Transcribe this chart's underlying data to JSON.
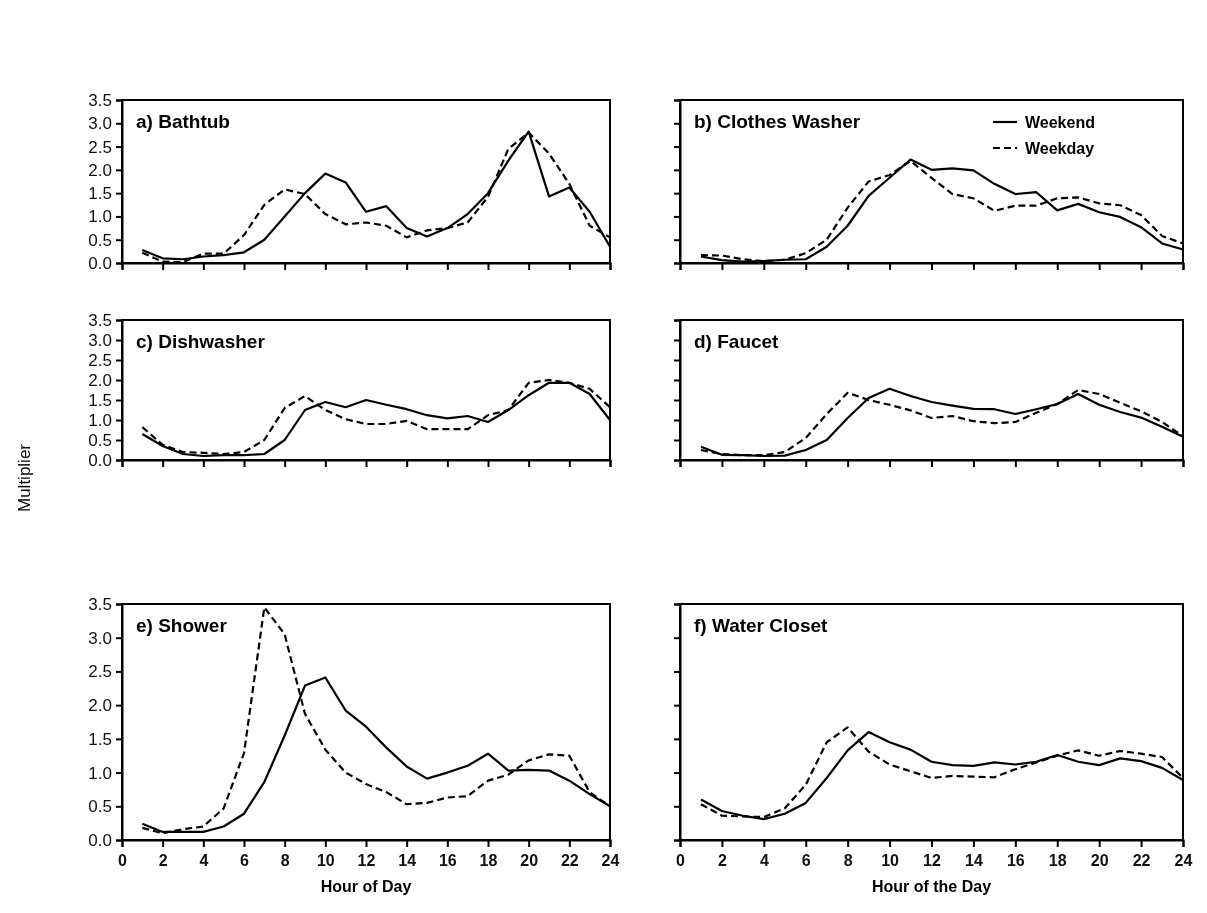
{
  "chart_data": [
    {
      "type": "line",
      "title": "a)  Bathtub",
      "x": [
        1,
        2,
        3,
        4,
        5,
        6,
        7,
        8,
        9,
        10,
        11,
        12,
        13,
        14,
        15,
        16,
        17,
        18,
        19,
        20,
        21,
        22,
        23,
        24
      ],
      "xlim": [
        0,
        24
      ],
      "xticks": [
        0,
        2,
        4,
        6,
        8,
        10,
        12,
        14,
        16,
        18,
        20,
        22,
        24
      ],
      "ylim": [
        0,
        3.5
      ],
      "yticks": [
        {
          "value": 0,
          "label": "0.0"
        },
        0.5,
        {
          "value": 1,
          "label": "1.0"
        },
        1.5,
        {
          "value": 2,
          "label": "2.0"
        },
        2.5,
        {
          "value": 3,
          "label": "3.0"
        },
        3.5
      ],
      "tick_labels": "y",
      "series": [
        {
          "color": "#000000",
          "line_style": "solid",
          "values": [
            0.28,
            0.1,
            0.08,
            0.14,
            0.17,
            0.23,
            0.5,
            1.0,
            1.5,
            1.92,
            1.73,
            1.1,
            1.22,
            0.75,
            0.57,
            0.75,
            1.05,
            1.5,
            2.2,
            2.82,
            1.43,
            1.62,
            1.1,
            0.35
          ]
        },
        {
          "color": "#000000",
          "line_style": "dashed",
          "values": [
            0.22,
            0.03,
            0.02,
            0.2,
            0.2,
            0.6,
            1.25,
            1.58,
            1.48,
            1.05,
            0.83,
            0.87,
            0.8,
            0.55,
            0.7,
            0.75,
            0.87,
            1.42,
            2.45,
            2.8,
            2.35,
            1.7,
            0.8,
            0.55
          ]
        }
      ]
    },
    {
      "type": "line",
      "title": "b)  Clothes Washer",
      "x": [
        1,
        2,
        3,
        4,
        5,
        6,
        7,
        8,
        9,
        10,
        11,
        12,
        13,
        14,
        15,
        16,
        17,
        18,
        19,
        20,
        21,
        22,
        23,
        24
      ],
      "xlim": [
        0,
        24
      ],
      "xticks": [
        0,
        2,
        4,
        6,
        8,
        10,
        12,
        14,
        16,
        18,
        20,
        22,
        24
      ],
      "ylim": [
        0,
        3.5
      ],
      "yticks": [
        0,
        0.5,
        1,
        1.5,
        2,
        2.5,
        3,
        3.5
      ],
      "tick_labels": false,
      "legend": "top right",
      "series": [
        {
          "name": "Weekend",
          "color": "#000000",
          "line_style": "solid",
          "values": [
            0.14,
            0.06,
            0.03,
            0.04,
            0.07,
            0.08,
            0.35,
            0.8,
            1.44,
            1.83,
            2.22,
            2.0,
            2.03,
            1.99,
            1.7,
            1.48,
            1.52,
            1.13,
            1.27,
            1.09,
            0.99,
            0.77,
            0.42,
            0.29
          ]
        },
        {
          "name": "Weekday",
          "color": "#000000",
          "line_style": "dashed",
          "values": [
            0.17,
            0.16,
            0.08,
            0.04,
            0.07,
            0.21,
            0.5,
            1.19,
            1.75,
            1.89,
            2.19,
            1.83,
            1.48,
            1.39,
            1.12,
            1.23,
            1.23,
            1.39,
            1.41,
            1.28,
            1.24,
            1.03,
            0.58,
            0.42
          ]
        }
      ]
    },
    {
      "type": "line",
      "title": "c)  Dishwasher",
      "ylabel": "Multiplier",
      "x": [
        1,
        2,
        3,
        4,
        5,
        6,
        7,
        8,
        9,
        10,
        11,
        12,
        13,
        14,
        15,
        16,
        17,
        18,
        19,
        20,
        21,
        22,
        23,
        24
      ],
      "xlim": [
        0,
        24
      ],
      "xticks": [
        0,
        2,
        4,
        6,
        8,
        10,
        12,
        14,
        16,
        18,
        20,
        22,
        24
      ],
      "ylim": [
        0,
        3.5
      ],
      "yticks": [
        {
          "value": 0,
          "label": "0.0"
        },
        0.5,
        {
          "value": 1,
          "label": "1.0"
        },
        1.5,
        {
          "value": 2,
          "label": "2.0"
        },
        2.5,
        {
          "value": 3,
          "label": "3.0"
        },
        3.5
      ],
      "tick_labels": "y",
      "series": [
        {
          "color": "#000000",
          "line_style": "solid",
          "values": [
            0.65,
            0.35,
            0.15,
            0.1,
            0.12,
            0.12,
            0.15,
            0.5,
            1.25,
            1.45,
            1.32,
            1.5,
            1.38,
            1.27,
            1.12,
            1.04,
            1.1,
            0.95,
            1.25,
            1.62,
            1.93,
            1.93,
            1.65,
            1.0
          ]
        },
        {
          "color": "#000000",
          "line_style": "dashed",
          "values": [
            0.82,
            0.38,
            0.2,
            0.18,
            0.15,
            0.2,
            0.5,
            1.3,
            1.6,
            1.25,
            1.02,
            0.9,
            0.9,
            0.98,
            0.77,
            0.77,
            0.77,
            1.12,
            1.25,
            1.93,
            2.0,
            1.93,
            1.78,
            1.32
          ]
        }
      ]
    },
    {
      "type": "line",
      "title": "d)  Faucet",
      "x": [
        1,
        2,
        3,
        4,
        5,
        6,
        7,
        8,
        9,
        10,
        11,
        12,
        13,
        14,
        15,
        16,
        17,
        18,
        19,
        20,
        21,
        22,
        23,
        24
      ],
      "xlim": [
        0,
        24
      ],
      "xticks": [
        0,
        2,
        4,
        6,
        8,
        10,
        12,
        14,
        16,
        18,
        20,
        22,
        24
      ],
      "ylim": [
        0,
        3.5
      ],
      "yticks": [
        0,
        0.5,
        1,
        1.5,
        2,
        2.5,
        3,
        3.5
      ],
      "tick_labels": false,
      "series": [
        {
          "color": "#000000",
          "line_style": "solid",
          "values": [
            0.33,
            0.13,
            0.12,
            0.1,
            0.11,
            0.25,
            0.5,
            1.05,
            1.55,
            1.78,
            1.6,
            1.45,
            1.36,
            1.28,
            1.27,
            1.15,
            1.27,
            1.4,
            1.65,
            1.38,
            1.2,
            1.06,
            0.83,
            0.58
          ]
        },
        {
          "color": "#000000",
          "line_style": "dashed",
          "values": [
            0.25,
            0.15,
            0.12,
            0.12,
            0.2,
            0.55,
            1.15,
            1.68,
            1.5,
            1.38,
            1.24,
            1.05,
            1.1,
            0.97,
            0.92,
            0.95,
            1.18,
            1.4,
            1.75,
            1.65,
            1.43,
            1.22,
            0.95,
            0.6
          ]
        }
      ]
    },
    {
      "type": "line",
      "title": "e)  Shower",
      "xlabel": "Hour of Day",
      "x": [
        1,
        2,
        3,
        4,
        5,
        6,
        7,
        8,
        9,
        10,
        11,
        12,
        13,
        14,
        15,
        16,
        17,
        18,
        19,
        20,
        21,
        22,
        23,
        24
      ],
      "xlim": [
        0,
        24
      ],
      "xticks": [
        0,
        2,
        4,
        6,
        8,
        10,
        12,
        14,
        16,
        18,
        20,
        22,
        24
      ],
      "ylim": [
        0,
        3.5
      ],
      "yticks": [
        {
          "value": 0,
          "label": "0.0"
        },
        0.5,
        {
          "value": 1,
          "label": "1.0"
        },
        1.5,
        {
          "value": 2,
          "label": "2.0"
        },
        2.5,
        {
          "value": 3,
          "label": "3.0"
        },
        3.5
      ],
      "series": [
        {
          "color": "#000000",
          "line_style": "solid",
          "values": [
            0.24,
            0.12,
            0.12,
            0.12,
            0.2,
            0.39,
            0.86,
            1.55,
            2.29,
            2.41,
            1.92,
            1.68,
            1.37,
            1.09,
            0.91,
            1.0,
            1.1,
            1.28,
            1.03,
            1.04,
            1.03,
            0.88,
            0.68,
            0.5
          ]
        },
        {
          "color": "#000000",
          "line_style": "dashed",
          "values": [
            0.18,
            0.1,
            0.16,
            0.2,
            0.47,
            1.29,
            3.45,
            3.05,
            1.87,
            1.34,
            1.0,
            0.83,
            0.71,
            0.53,
            0.55,
            0.63,
            0.65,
            0.88,
            0.97,
            1.18,
            1.27,
            1.25,
            0.71,
            0.5
          ]
        }
      ]
    },
    {
      "type": "line",
      "title": "f)  Water Closet",
      "xlabel": "Hour of the Day",
      "x": [
        1,
        2,
        3,
        4,
        5,
        6,
        7,
        8,
        9,
        10,
        11,
        12,
        13,
        14,
        15,
        16,
        17,
        18,
        19,
        20,
        21,
        22,
        23,
        24
      ],
      "xlim": [
        0,
        24
      ],
      "xticks": [
        0,
        2,
        4,
        6,
        8,
        10,
        12,
        14,
        16,
        18,
        20,
        22,
        24
      ],
      "ylim": [
        0,
        3.5
      ],
      "yticks": [
        0,
        0.5,
        1,
        1.5,
        2,
        2.5,
        3,
        3.5
      ],
      "tick_labels": "x",
      "series": [
        {
          "color": "#000000",
          "line_style": "solid",
          "values": [
            0.6,
            0.43,
            0.36,
            0.31,
            0.39,
            0.55,
            0.92,
            1.33,
            1.6,
            1.45,
            1.34,
            1.16,
            1.11,
            1.1,
            1.15,
            1.12,
            1.16,
            1.26,
            1.16,
            1.11,
            1.21,
            1.17,
            1.07,
            0.89
          ]
        },
        {
          "color": "#000000",
          "line_style": "dashed",
          "values": [
            0.53,
            0.36,
            0.35,
            0.34,
            0.47,
            0.82,
            1.45,
            1.67,
            1.31,
            1.12,
            1.02,
            0.92,
            0.95,
            0.94,
            0.93,
            1.05,
            1.15,
            1.25,
            1.33,
            1.25,
            1.32,
            1.28,
            1.23,
            0.92
          ]
        }
      ]
    }
  ]
}
